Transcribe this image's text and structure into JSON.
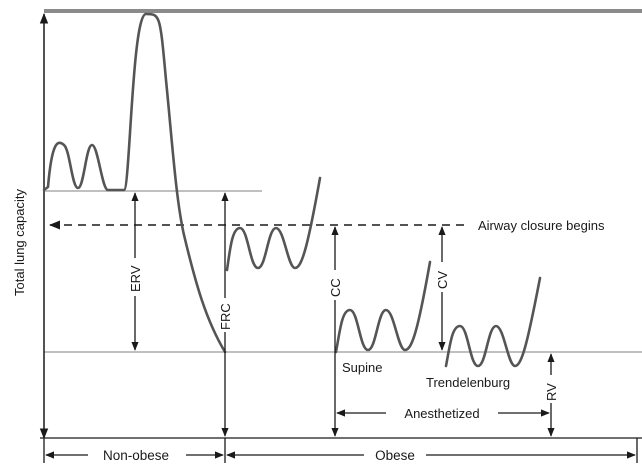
{
  "figure": {
    "y_axis_label": "Total lung capacity",
    "volumes": {
      "erv": "ERV",
      "frc": "FRC",
      "cc": "CC",
      "cv": "CV",
      "rv": "RV"
    },
    "annotations": {
      "airway_closure": "Airway closure begins",
      "supine": "Supine",
      "trendelenburg": "Trendelenburg",
      "anesthetized": "Anesthetized"
    },
    "groups": {
      "non_obese": "Non-obese",
      "obese": "Obese"
    }
  }
}
